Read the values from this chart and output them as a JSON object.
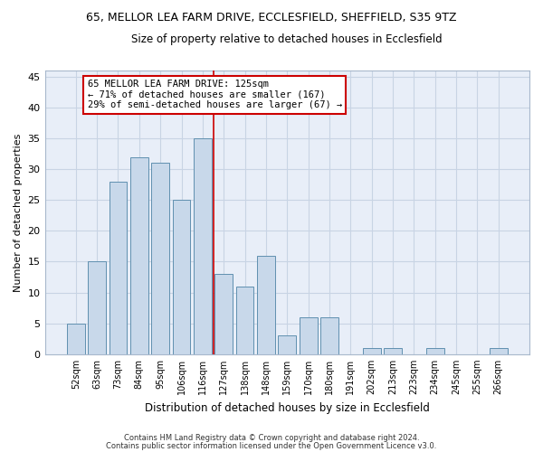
{
  "title_line1": "65, MELLOR LEA FARM DRIVE, ECCLESFIELD, SHEFFIELD, S35 9TZ",
  "title_line2": "Size of property relative to detached houses in Ecclesfield",
  "xlabel": "Distribution of detached houses by size in Ecclesfield",
  "ylabel": "Number of detached properties",
  "bar_labels": [
    "52sqm",
    "63sqm",
    "73sqm",
    "84sqm",
    "95sqm",
    "106sqm",
    "116sqm",
    "127sqm",
    "138sqm",
    "148sqm",
    "159sqm",
    "170sqm",
    "180sqm",
    "191sqm",
    "202sqm",
    "213sqm",
    "223sqm",
    "234sqm",
    "245sqm",
    "255sqm",
    "266sqm"
  ],
  "bar_values": [
    5,
    15,
    28,
    32,
    31,
    25,
    35,
    13,
    11,
    16,
    3,
    6,
    6,
    0,
    1,
    1,
    0,
    1,
    0,
    0,
    1
  ],
  "bar_color": "#c8d8ea",
  "bar_edge_color": "#6090b0",
  "red_line_color": "#cc0000",
  "annotation_title": "65 MELLOR LEA FARM DRIVE: 125sqm",
  "annotation_line1": "← 71% of detached houses are smaller (167)",
  "annotation_line2": "29% of semi-detached houses are larger (67) →",
  "annotation_box_color": "#ffffff",
  "annotation_box_edge": "#cc0000",
  "grid_color": "#c8d4e4",
  "background_color": "#e8eef8",
  "footer_line1": "Contains HM Land Registry data © Crown copyright and database right 2024.",
  "footer_line2": "Contains public sector information licensed under the Open Government Licence v3.0.",
  "ylim": [
    0,
    46
  ],
  "yticks": [
    0,
    5,
    10,
    15,
    20,
    25,
    30,
    35,
    40,
    45
  ]
}
